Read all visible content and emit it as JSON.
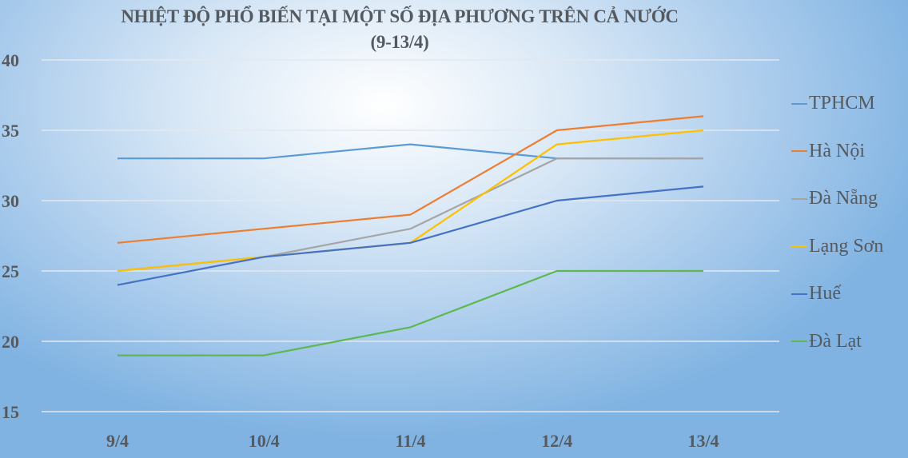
{
  "chart_data": {
    "type": "line",
    "title": "NHIỆT ĐỘ PHỔ BIẾN TẠI MỘT SỐ ĐỊA PHƯƠNG TRÊN CẢ NƯỚC",
    "subtitle": "(9-13/4)",
    "xlabel": "",
    "ylabel": "",
    "categories": [
      "9/4",
      "10/4",
      "11/4",
      "12/4",
      "13/4"
    ],
    "ylim": [
      15,
      40
    ],
    "yticks": [
      "40",
      "35",
      "30",
      "25",
      "20",
      "15"
    ],
    "grid": true,
    "legend_position": "right",
    "series": [
      {
        "name": "TPHCM",
        "color": "#5b9bd5",
        "values": [
          33,
          33,
          34,
          33,
          33
        ]
      },
      {
        "name": "Hà Nội",
        "color": "#ed7d31",
        "values": [
          27,
          28,
          29,
          35,
          36
        ]
      },
      {
        "name": "Đà Nẵng",
        "color": "#a5a5a5",
        "values": [
          25,
          26,
          28,
          33,
          33
        ]
      },
      {
        "name": "Lạng Sơn",
        "color": "#ffc000",
        "values": [
          25,
          26,
          27,
          34,
          35
        ]
      },
      {
        "name": "Huế",
        "color": "#4472c4",
        "values": [
          24,
          26,
          27,
          30,
          31
        ]
      },
      {
        "name": "Đà Lạt",
        "color": "#5cb84f",
        "values": [
          19,
          19,
          21,
          25,
          25
        ]
      }
    ]
  }
}
